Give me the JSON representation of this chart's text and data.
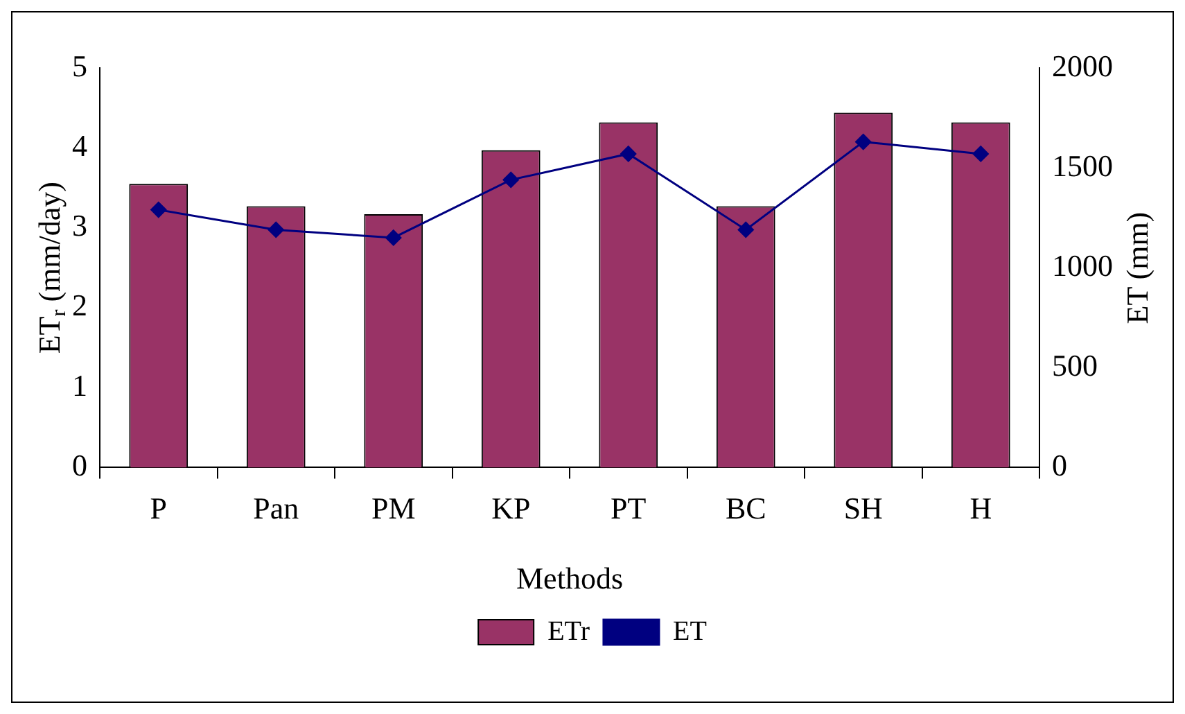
{
  "chart_data": {
    "type": "bar",
    "xlabel": "Methods",
    "ylabel": "ET$_{r}$ (mm/day)",
    "y2label": "ET (mm)",
    "categories": [
      "P",
      "Pan",
      "PM",
      "KP",
      "PT",
      "BC",
      "SH",
      "H"
    ],
    "series": [
      {
        "name": "ETr",
        "color": "#993366",
        "values": [
          3.55,
          3.27,
          3.17,
          3.97,
          4.32,
          3.27,
          4.44,
          4.32
        ]
      },
      {
        "name": "ET",
        "type": "line",
        "axis": "y2",
        "color": "#000080",
        "marker": "diamond",
        "values": [
          1290,
          1190,
          1150,
          1440,
          1570,
          1190,
          1630,
          1570
        ]
      }
    ],
    "ylim": [
      0,
      5
    ],
    "yticks": [
      0,
      1,
      2,
      3,
      4,
      5
    ],
    "y2lim": [
      0,
      2000
    ],
    "y2ticks": [
      0,
      500,
      1000,
      1500,
      2000
    ],
    "grid": false,
    "legend": "bottom"
  }
}
